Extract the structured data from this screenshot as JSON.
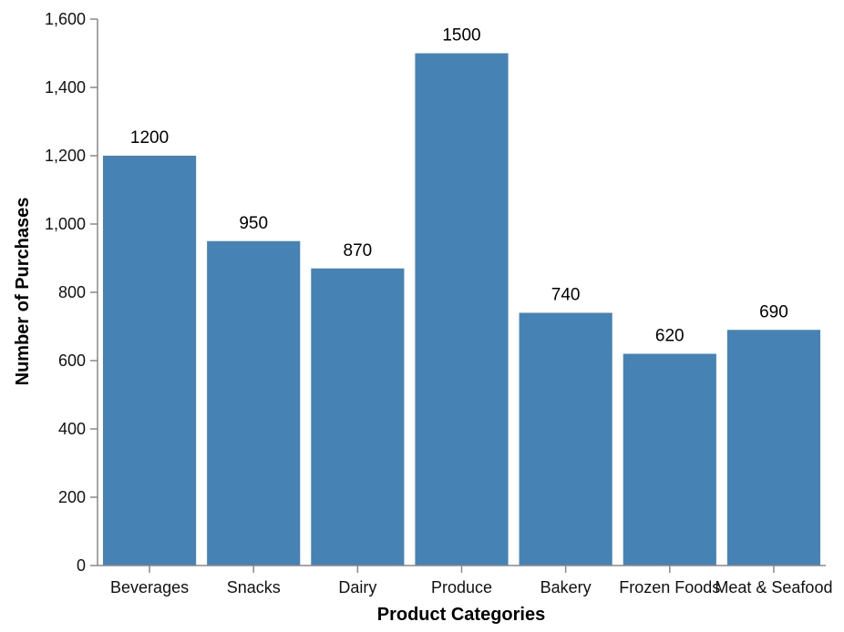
{
  "chart_data": {
    "type": "bar",
    "categories": [
      "Beverages",
      "Snacks",
      "Dairy",
      "Produce",
      "Bakery",
      "Frozen Foods",
      "Meat & Seafood"
    ],
    "values": [
      1200,
      950,
      870,
      1500,
      740,
      620,
      690
    ],
    "xlabel": "Product Categories",
    "ylabel": "Number of Purchases",
    "ylim": [
      0,
      1600
    ],
    "yticks": [
      "0",
      "200",
      "400",
      "600",
      "800",
      "1,000",
      "1,200",
      "1,400",
      "1,600"
    ],
    "data_labels": [
      "1200",
      "950",
      "870",
      "1500",
      "740",
      "620",
      "690"
    ],
    "bar_color": "#4682b4",
    "grid": false,
    "legend": "none"
  }
}
